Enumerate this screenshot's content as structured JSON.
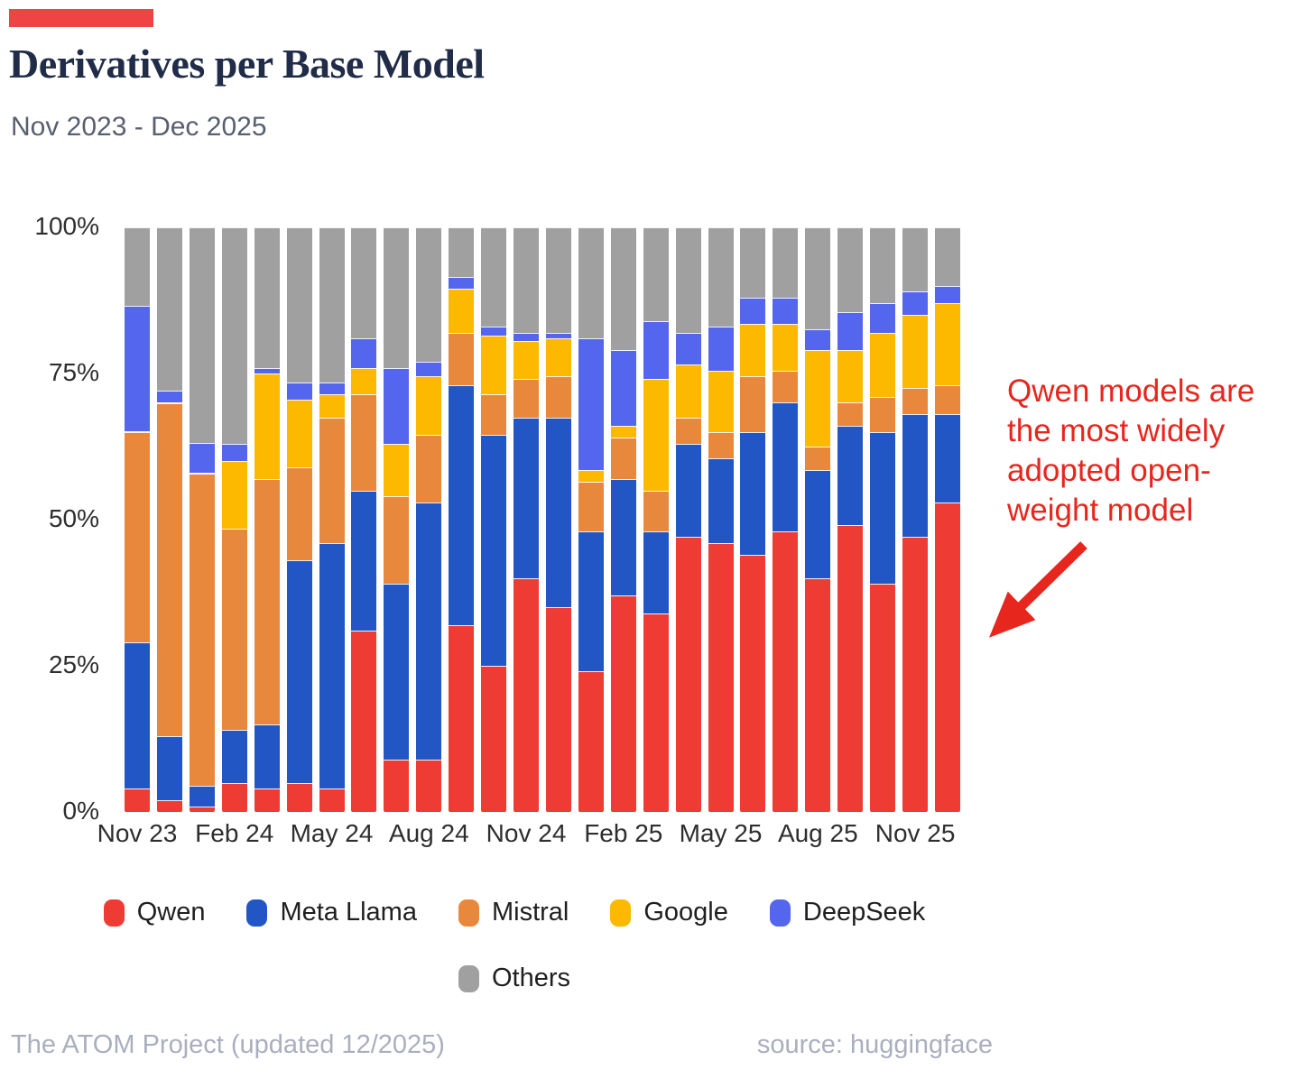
{
  "header": {
    "accent_color": "#f04343"
  },
  "chart_data": {
    "type": "bar",
    "stacked": true,
    "percent": true,
    "title": "Derivatives per Base Model",
    "subtitle": "Nov 2023 - Dec 2025",
    "ylim": [
      0,
      100
    ],
    "y_ticks": [
      {
        "label": "100%",
        "value": 100
      },
      {
        "label": "75%",
        "value": 75
      },
      {
        "label": "50%",
        "value": 50
      },
      {
        "label": "25%",
        "value": 25
      },
      {
        "label": "0%",
        "value": 0
      }
    ],
    "categories": [
      "Nov 23",
      "Dec 23",
      "Jan 24",
      "Feb 24",
      "Mar 24",
      "Apr 24",
      "May 24",
      "Jun 24",
      "Jul 24",
      "Aug 24",
      "Sep 24",
      "Oct 24",
      "Nov 24",
      "Dec 24",
      "Jan 25",
      "Feb 25",
      "Mar 25",
      "Apr 25",
      "May 25",
      "Jun 25",
      "Jul 25",
      "Aug 25",
      "Sep 25",
      "Oct 25",
      "Nov 25",
      "Dec 25"
    ],
    "x_tick_labels_shown": [
      "Nov 23",
      "Feb 24",
      "May 24",
      "Aug 24",
      "Nov 24",
      "Feb 25",
      "May 25",
      "Aug 25",
      "Nov 25"
    ],
    "x_tick_positions": [
      0,
      3,
      6,
      9,
      12,
      15,
      18,
      21,
      24
    ],
    "series": [
      {
        "name": "Qwen",
        "color": "#ee3b33",
        "values": [
          4,
          2,
          1,
          5,
          4,
          5,
          4,
          31,
          9,
          9,
          32,
          25,
          40,
          35,
          24,
          37,
          34,
          47,
          46,
          44,
          48,
          40,
          49,
          39,
          47,
          53
        ]
      },
      {
        "name": "Meta Llama",
        "color": "#2256c5",
        "values": [
          25,
          11,
          3.5,
          9,
          11,
          38,
          42,
          24,
          30,
          44,
          41,
          39.5,
          27.5,
          32.5,
          24,
          20,
          14,
          16,
          14.5,
          21,
          22,
          18.5,
          17,
          26,
          21,
          15
        ]
      },
      {
        "name": "Mistral",
        "color": "#e8883c",
        "values": [
          36,
          57,
          53.5,
          34.5,
          42,
          16,
          21.5,
          16.5,
          15,
          11.5,
          9,
          7,
          6.5,
          7,
          8.5,
          7,
          7,
          4.5,
          4.5,
          9.5,
          5.5,
          4,
          4,
          6,
          4.5,
          5
        ]
      },
      {
        "name": "Google",
        "color": "#fcb900",
        "values": [
          0,
          0,
          0,
          11.5,
          18,
          11.5,
          4,
          4.5,
          9,
          10,
          7.5,
          10,
          6.5,
          6.5,
          2,
          2,
          19,
          9,
          10.5,
          9,
          8,
          16.5,
          9,
          11,
          12.5,
          14
        ]
      },
      {
        "name": "DeepSeek",
        "color": "#5465ee",
        "values": [
          21.5,
          2,
          5,
          3,
          1,
          3,
          2,
          5,
          13,
          2.5,
          2,
          1.5,
          1.5,
          1,
          22.5,
          13,
          10,
          5.5,
          7.5,
          4.5,
          4.5,
          3.5,
          6.5,
          5,
          4,
          3
        ]
      },
      {
        "name": "Others",
        "color": "#a0a0a0",
        "values": [
          13.5,
          28,
          37,
          37,
          24,
          26.5,
          26.5,
          19,
          24,
          23,
          8.5,
          17,
          18,
          18,
          19,
          21,
          16,
          18,
          17,
          12,
          12,
          17.5,
          14.5,
          13,
          11,
          10
        ]
      }
    ],
    "legend_position": "bottom",
    "grid": false
  },
  "annotation": {
    "color": "#e7261d",
    "lines": [
      "Qwen models are",
      "the most widely",
      "adopted open-",
      "weight model"
    ]
  },
  "footer": {
    "left": "The ATOM Project (updated 12/2025)",
    "right": "source: huggingface"
  }
}
